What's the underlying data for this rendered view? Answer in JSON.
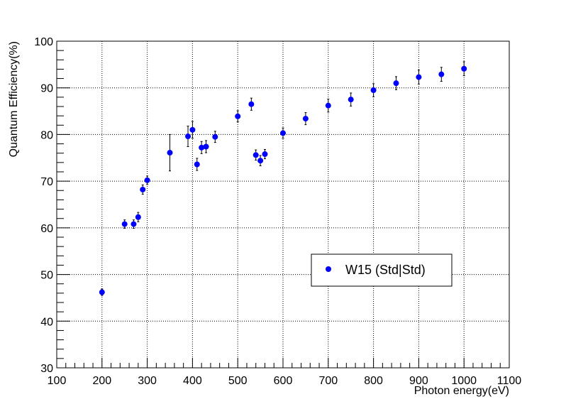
{
  "chart_data": {
    "type": "scatter",
    "title": "",
    "xlabel": "Photon energy(eV)",
    "ylabel": "Quantum Efficiency(%)",
    "xlim": [
      100,
      1100
    ],
    "ylim": [
      30,
      100
    ],
    "xticks": [
      100,
      200,
      300,
      400,
      500,
      600,
      700,
      800,
      900,
      1000,
      1100
    ],
    "yticks": [
      30,
      40,
      50,
      60,
      70,
      80,
      90,
      100
    ],
    "x_minor_step": 20,
    "y_minor_step": 2,
    "grid": true,
    "legend_position": "lower-right",
    "marker_color": "#0000ff",
    "series": [
      {
        "name": "W15 (Std|Std)",
        "points": [
          {
            "x": 200,
            "y": 46.2,
            "err": 0.7
          },
          {
            "x": 250,
            "y": 60.8,
            "err": 0.9
          },
          {
            "x": 270,
            "y": 60.8,
            "err": 0.9
          },
          {
            "x": 280,
            "y": 62.3,
            "err": 1.0
          },
          {
            "x": 290,
            "y": 68.2,
            "err": 1.0
          },
          {
            "x": 300,
            "y": 70.2,
            "err": 0.9
          },
          {
            "x": 350,
            "y": 76.1,
            "err": 3.9
          },
          {
            "x": 390,
            "y": 79.6,
            "err": 2.2
          },
          {
            "x": 400,
            "y": 81.0,
            "err": 1.8
          },
          {
            "x": 410,
            "y": 73.6,
            "err": 1.3
          },
          {
            "x": 420,
            "y": 77.2,
            "err": 1.3
          },
          {
            "x": 430,
            "y": 77.4,
            "err": 1.3
          },
          {
            "x": 450,
            "y": 79.5,
            "err": 1.2
          },
          {
            "x": 500,
            "y": 83.9,
            "err": 1.2
          },
          {
            "x": 530,
            "y": 86.5,
            "err": 1.3
          },
          {
            "x": 540,
            "y": 75.6,
            "err": 1.1
          },
          {
            "x": 550,
            "y": 74.4,
            "err": 1.1
          },
          {
            "x": 560,
            "y": 75.8,
            "err": 1.0
          },
          {
            "x": 600,
            "y": 80.3,
            "err": 1.1
          },
          {
            "x": 650,
            "y": 83.4,
            "err": 1.3
          },
          {
            "x": 700,
            "y": 86.2,
            "err": 1.4
          },
          {
            "x": 750,
            "y": 87.5,
            "err": 1.4
          },
          {
            "x": 800,
            "y": 89.5,
            "err": 1.4
          },
          {
            "x": 850,
            "y": 91.0,
            "err": 1.4
          },
          {
            "x": 900,
            "y": 92.3,
            "err": 1.5
          },
          {
            "x": 950,
            "y": 92.9,
            "err": 1.5
          },
          {
            "x": 1000,
            "y": 94.1,
            "err": 1.5
          }
        ]
      }
    ]
  }
}
